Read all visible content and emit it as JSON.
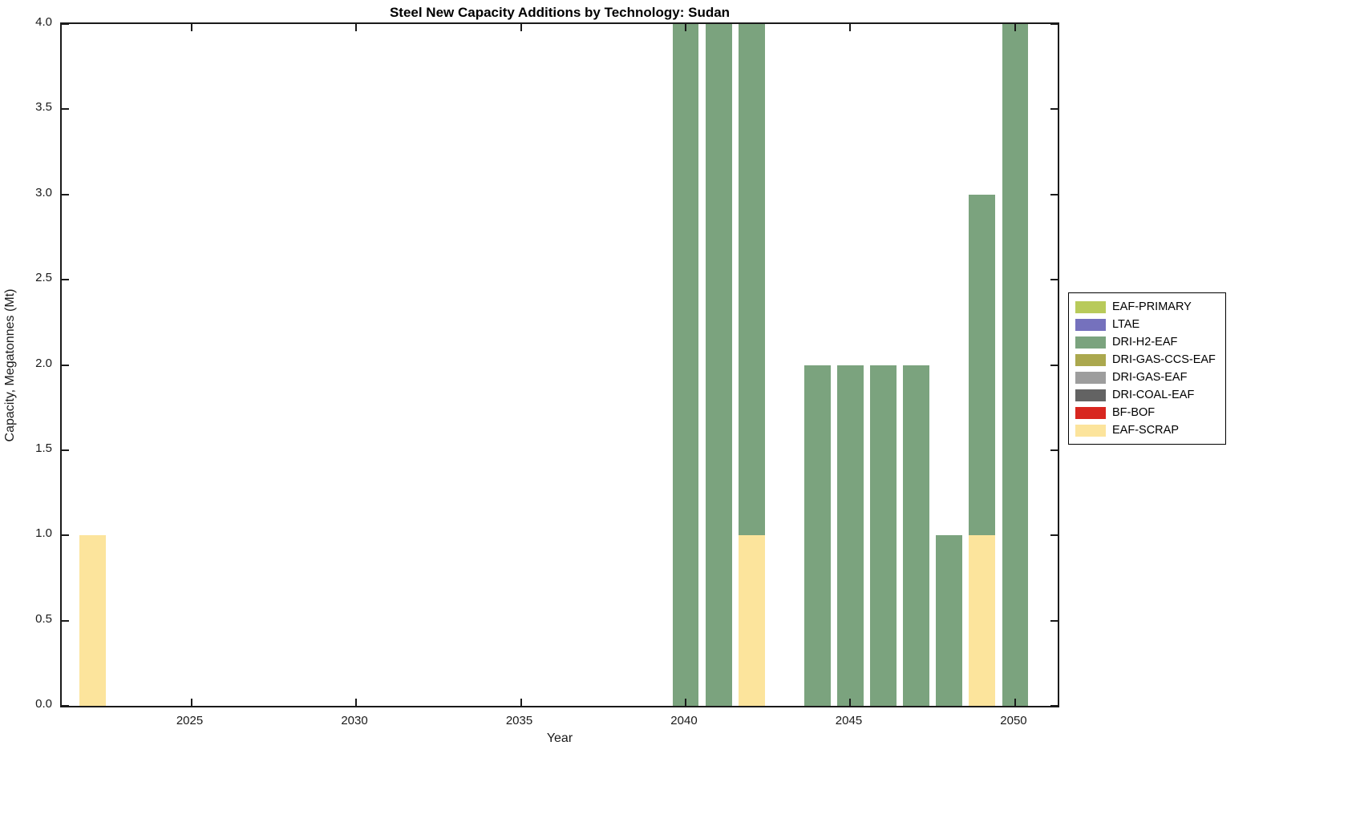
{
  "chart_data": {
    "type": "bar",
    "stacked": true,
    "title": "Steel New Capacity Additions by Technology: Sudan",
    "xlabel": "Year",
    "ylabel": "Capacity, Megatonnes (Mt)",
    "xlim": [
      2021.07,
      2051.29
    ],
    "ylim": [
      0,
      4
    ],
    "grid": false,
    "legend_position": "right-outside",
    "bar_width_years": 0.8,
    "axis_color": "#1a1a1a",
    "xticks": [
      {
        "v": 2025,
        "label": "2025"
      },
      {
        "v": 2030,
        "label": "2030"
      },
      {
        "v": 2035,
        "label": "2035"
      },
      {
        "v": 2040,
        "label": "2040"
      },
      {
        "v": 2045,
        "label": "2045"
      },
      {
        "v": 2050,
        "label": "2050"
      }
    ],
    "yticks": [
      {
        "v": 0,
        "label": "0.0"
      },
      {
        "v": 0.5,
        "label": "0.5"
      },
      {
        "v": 1,
        "label": "1.0"
      },
      {
        "v": 1.5,
        "label": "1.5"
      },
      {
        "v": 2,
        "label": "2.0"
      },
      {
        "v": 2.5,
        "label": "2.5"
      },
      {
        "v": 3,
        "label": "3.0"
      },
      {
        "v": 3.5,
        "label": "3.5"
      },
      {
        "v": 4,
        "label": "4.0"
      }
    ],
    "years": [
      2022,
      2040,
      2041,
      2042,
      2044,
      2045,
      2046,
      2047,
      2048,
      2049,
      2050
    ],
    "series": [
      {
        "name": "EAF-SCRAP",
        "color": "#FCE49C",
        "values": [
          1,
          0,
          0,
          1,
          0,
          0,
          0,
          0,
          0,
          1,
          0
        ]
      },
      {
        "name": "DRI-H2-EAF",
        "color": "#7BA37E",
        "values": [
          0,
          4,
          4,
          3,
          2,
          2,
          2,
          2,
          1,
          2,
          4
        ]
      }
    ],
    "legend": [
      {
        "label": "EAF-PRIMARY",
        "color": "#B8CA5A"
      },
      {
        "label": "LTAE",
        "color": "#7571BD"
      },
      {
        "label": "DRI-H2-EAF",
        "color": "#7BA37E"
      },
      {
        "label": "DRI-GAS-CCS-EAF",
        "color": "#ABA84E"
      },
      {
        "label": "DRI-GAS-EAF",
        "color": "#9D9D9D"
      },
      {
        "label": "DRI-COAL-EAF",
        "color": "#636363"
      },
      {
        "label": "BF-BOF",
        "color": "#D8261F"
      },
      {
        "label": "EAF-SCRAP",
        "color": "#FCE49C"
      }
    ]
  }
}
